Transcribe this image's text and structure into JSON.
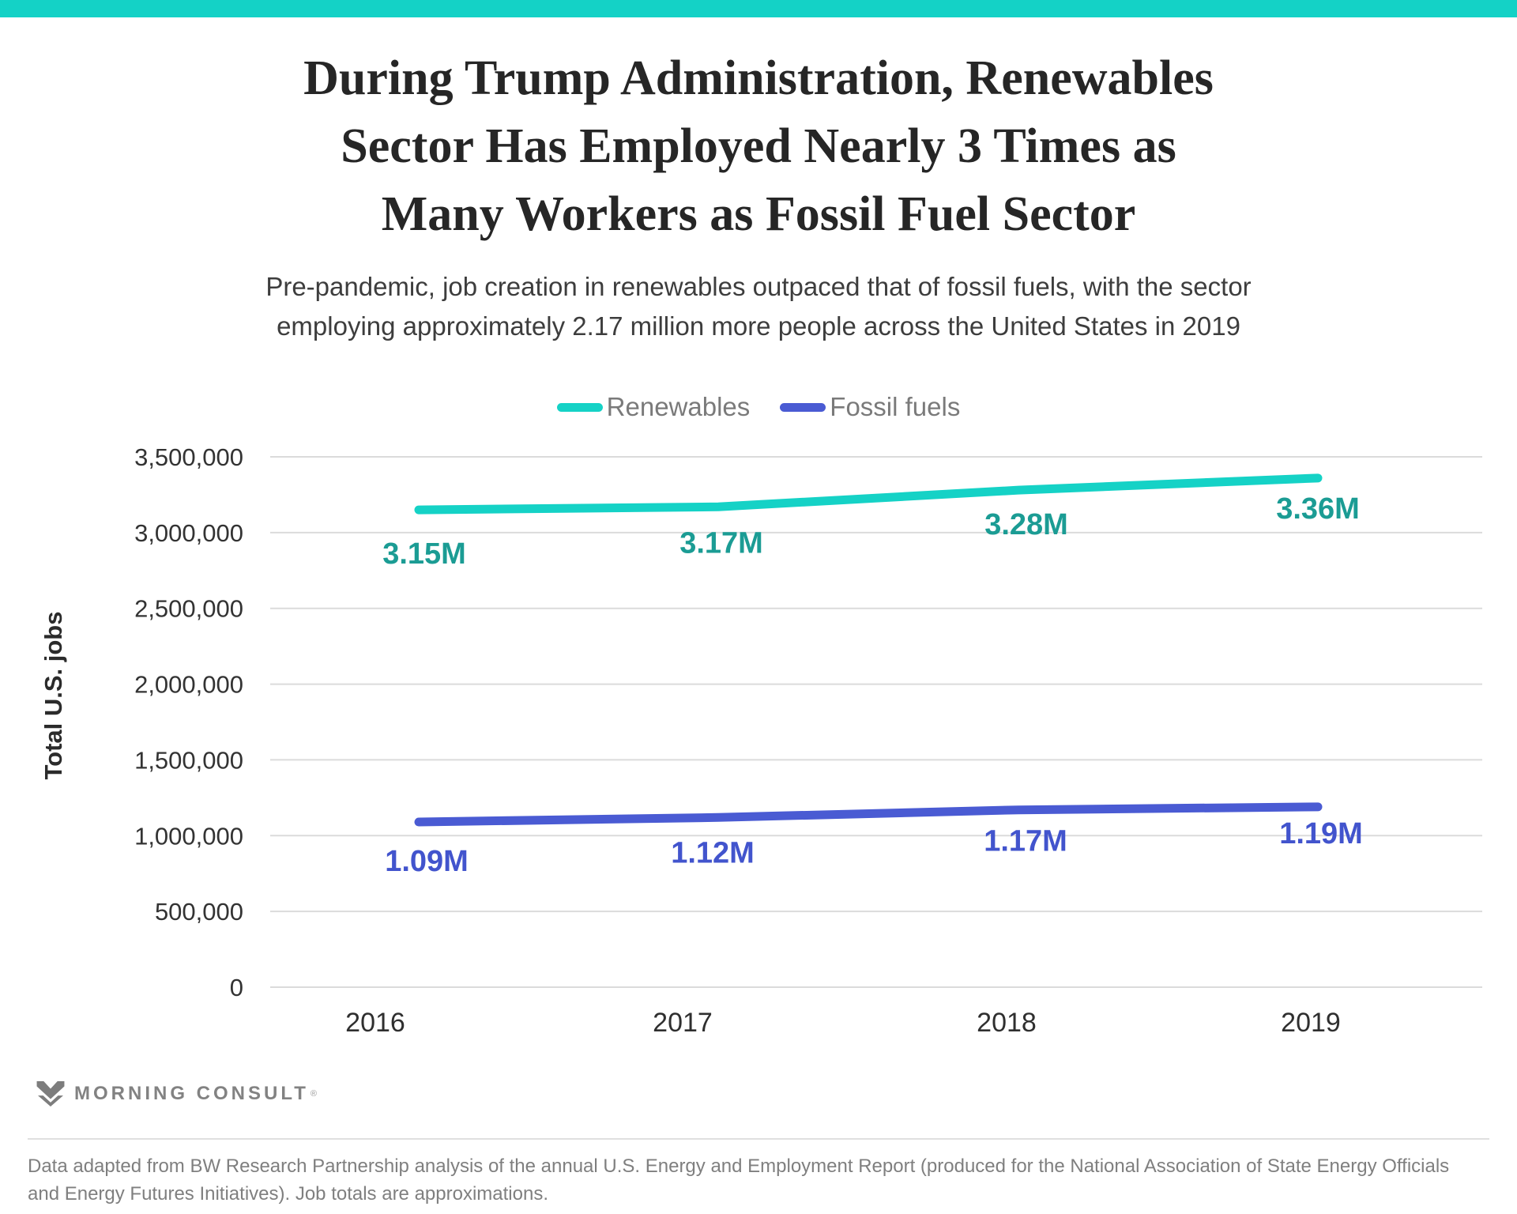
{
  "colors": {
    "accent_bar": "#14d2c6",
    "grid": "#dbdbdb",
    "tick_text": "#333333",
    "x_tick_text": "#2f2f2f",
    "axis_title_text": "#2b2b2b"
  },
  "title": {
    "lines": [
      "During Trump Administration, Renewables",
      "Sector Has Employed Nearly 3 Times as",
      "Many Workers as Fossil Fuel Sector"
    ]
  },
  "subtitle": {
    "lines": [
      "Pre-pandemic, job creation in renewables outpaced that of fossil fuels, with the sector",
      "employing approximately 2.17 million more people across the United States in 2019"
    ]
  },
  "legend": {
    "items": [
      {
        "label": "Renewables"
      },
      {
        "label": "Fossil fuels"
      }
    ]
  },
  "chart_data": {
    "type": "line",
    "title": "During Trump Administration, Renewables Sector Has Employed Nearly 3 Times as Many Workers as Fossil Fuel Sector",
    "x": [
      "2016",
      "2017",
      "2018",
      "2019"
    ],
    "series": [
      {
        "name": "Renewables",
        "values": [
          3150000,
          3170000,
          3280000,
          3360000
        ],
        "labels": [
          "3.15M",
          "3.17M",
          "3.28M",
          "3.36M"
        ],
        "color": "#15d2c6",
        "label_color": "#1b9c94"
      },
      {
        "name": "Fossil fuels",
        "values": [
          1090000,
          1120000,
          1170000,
          1190000
        ],
        "labels": [
          "1.09M",
          "1.12M",
          "1.17M",
          "1.19M"
        ],
        "color": "#4a5bd3",
        "label_color": "#4254cd"
      }
    ],
    "xlabel": "",
    "ylabel": "Total U.S. jobs",
    "ylim": [
      0,
      3500000
    ],
    "grid": true,
    "legend_position": "top",
    "yticks": [
      {
        "value": 3500000,
        "label": "3,500,000"
      },
      {
        "value": 3000000,
        "label": "3,000,000"
      },
      {
        "value": 2500000,
        "label": "2,500,000"
      },
      {
        "value": 2000000,
        "label": "2,000,000"
      },
      {
        "value": 1500000,
        "label": "1,500,000"
      },
      {
        "value": 1000000,
        "label": "1,000,000"
      },
      {
        "value": 500000,
        "label": "500,000"
      },
      {
        "value": 0,
        "label": "0"
      }
    ]
  },
  "footer": {
    "logo_text": "MORNING CONSULT",
    "logo_mark": "®",
    "source_text": "Data adapted from BW Research Partnership analysis of the annual U.S. Energy and Employment Report (produced for the National Association of State Energy Officials and Energy Futures Initiatives). Job totals are approximations."
  }
}
